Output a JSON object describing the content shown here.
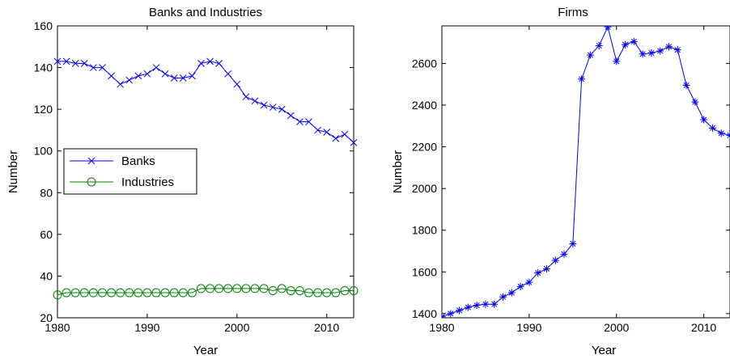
{
  "chart_data": [
    {
      "type": "line",
      "title": "Banks and Industries",
      "xlabel": "Year",
      "ylabel": "Number",
      "xlim": [
        1980,
        2013
      ],
      "ylim": [
        20,
        160
      ],
      "xticks": [
        1980,
        1990,
        2000,
        2010
      ],
      "yticks": [
        20,
        40,
        60,
        80,
        100,
        120,
        140,
        160
      ],
      "grid": false,
      "legend": "center-left",
      "x": [
        1980,
        1981,
        1982,
        1983,
        1984,
        1985,
        1986,
        1987,
        1988,
        1989,
        1990,
        1991,
        1992,
        1993,
        1994,
        1995,
        1996,
        1997,
        1998,
        1999,
        2000,
        2001,
        2002,
        2003,
        2004,
        2005,
        2006,
        2007,
        2008,
        2009,
        2010,
        2011,
        2012,
        2013
      ],
      "series": [
        {
          "name": "Banks",
          "color": "#0000ff",
          "marker": "x",
          "values": [
            143,
            143,
            142,
            142,
            140,
            140,
            136,
            132,
            134,
            136,
            137,
            140,
            137,
            135,
            135,
            136,
            142,
            143,
            142,
            137,
            132,
            126,
            124,
            122,
            121,
            120,
            117,
            114,
            114,
            110,
            109,
            106,
            108,
            104
          ]
        },
        {
          "name": "Industries",
          "color": "#008000",
          "marker": "o",
          "values": [
            31,
            32,
            32,
            32,
            32,
            32,
            32,
            32,
            32,
            32,
            32,
            32,
            32,
            32,
            32,
            32,
            34,
            34,
            34,
            34,
            34,
            34,
            34,
            34,
            33,
            34,
            33,
            33,
            32,
            32,
            32,
            32,
            33,
            33
          ]
        }
      ]
    },
    {
      "type": "line",
      "title": "Firms",
      "xlabel": "Year",
      "ylabel": "Number",
      "xlim": [
        1980,
        2013
      ],
      "ylim": [
        1380,
        2780
      ],
      "xticks": [
        1980,
        1990,
        2000,
        2010
      ],
      "yticks": [
        1400,
        1600,
        1800,
        2000,
        2200,
        2400,
        2600
      ],
      "grid": false,
      "x": [
        1980,
        1981,
        1982,
        1983,
        1984,
        1985,
        1986,
        1987,
        1988,
        1989,
        1990,
        1991,
        1992,
        1993,
        1994,
        1995,
        1996,
        1997,
        1998,
        1999,
        2000,
        2001,
        2002,
        2003,
        2004,
        2005,
        2006,
        2007,
        2008,
        2009,
        2010,
        2011,
        2012,
        2013
      ],
      "series": [
        {
          "color": "#0000ff",
          "marker": "*",
          "values": [
            1385,
            1400,
            1415,
            1430,
            1440,
            1445,
            1445,
            1480,
            1500,
            1530,
            1550,
            1595,
            1615,
            1655,
            1685,
            1735,
            2525,
            2640,
            2685,
            2775,
            2610,
            2690,
            2705,
            2645,
            2650,
            2660,
            2680,
            2665,
            2495,
            2415,
            2330,
            2290,
            2265,
            2255
          ]
        }
      ]
    }
  ]
}
